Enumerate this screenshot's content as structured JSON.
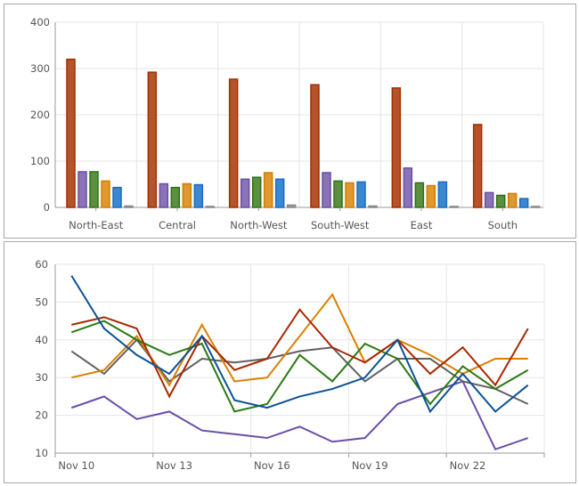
{
  "chart_data": [
    {
      "type": "bar",
      "categories": [
        "North-East",
        "Central",
        "North-West",
        "South-West",
        "East",
        "South"
      ],
      "ylim": [
        0,
        400
      ],
      "yticks": [
        0,
        100,
        200,
        300,
        400
      ],
      "grid": true,
      "series": [
        {
          "values": [
            320,
            292,
            277,
            265,
            258,
            179
          ],
          "color": "#b5532a",
          "stroke": "#a33000"
        },
        {
          "values": [
            77,
            51,
            61,
            75,
            85,
            32
          ],
          "color": "#8a73b8",
          "stroke": "#6a50a0"
        },
        {
          "values": [
            77,
            43,
            65,
            57,
            53,
            26
          ],
          "color": "#5b9040",
          "stroke": "#2e7014"
        },
        {
          "values": [
            57,
            51,
            75,
            53,
            47,
            30
          ],
          "color": "#e0982f",
          "stroke": "#d07f00"
        },
        {
          "values": [
            43,
            49,
            61,
            55,
            55,
            19
          ],
          "color": "#3c88d0",
          "stroke": "#1a6cc0"
        },
        {
          "values": [
            3,
            2,
            5,
            3,
            2,
            2
          ],
          "color": "#9a9a9a",
          "stroke": "#888888"
        }
      ]
    },
    {
      "type": "line",
      "x": [
        "Nov 10",
        "Nov 11",
        "Nov 12",
        "Nov 13",
        "Nov 14",
        "Nov 15",
        "Nov 16",
        "Nov 17",
        "Nov 18",
        "Nov 19",
        "Nov 20",
        "Nov 21",
        "Nov 22",
        "Nov 23",
        "Nov 24"
      ],
      "xtick_labels": [
        "Nov 10",
        "Nov 13",
        "Nov 16",
        "Nov 19",
        "Nov 22"
      ],
      "ylim": [
        10,
        60
      ],
      "yticks": [
        10,
        20,
        30,
        40,
        50,
        60
      ],
      "grid": true,
      "series": [
        {
          "values": [
            22,
            25,
            19,
            21,
            16,
            15,
            14,
            17,
            13,
            14,
            23,
            26,
            29,
            11,
            14
          ],
          "color": "#6a4ea8"
        },
        {
          "values": [
            37,
            31,
            40,
            29,
            35,
            34,
            35,
            37,
            38,
            29,
            35,
            35,
            29,
            27,
            23
          ],
          "color": "#606060"
        },
        {
          "values": [
            30,
            32,
            41,
            28,
            44,
            29,
            30,
            41,
            52,
            34,
            40,
            36,
            31,
            35,
            35
          ],
          "color": "#d98000"
        },
        {
          "values": [
            42,
            45,
            40,
            36,
            39,
            21,
            23,
            36,
            29,
            39,
            35,
            23,
            33,
            27,
            32
          ],
          "color": "#2a7a12"
        },
        {
          "values": [
            44,
            46,
            43,
            25,
            41,
            32,
            35,
            48,
            38,
            34,
            40,
            31,
            38,
            28,
            43
          ],
          "color": "#a82800"
        },
        {
          "values": [
            57,
            43,
            36,
            31,
            41,
            24,
            22,
            25,
            27,
            30,
            40,
            21,
            31,
            21,
            28
          ],
          "color": "#0a5296"
        }
      ]
    }
  ]
}
